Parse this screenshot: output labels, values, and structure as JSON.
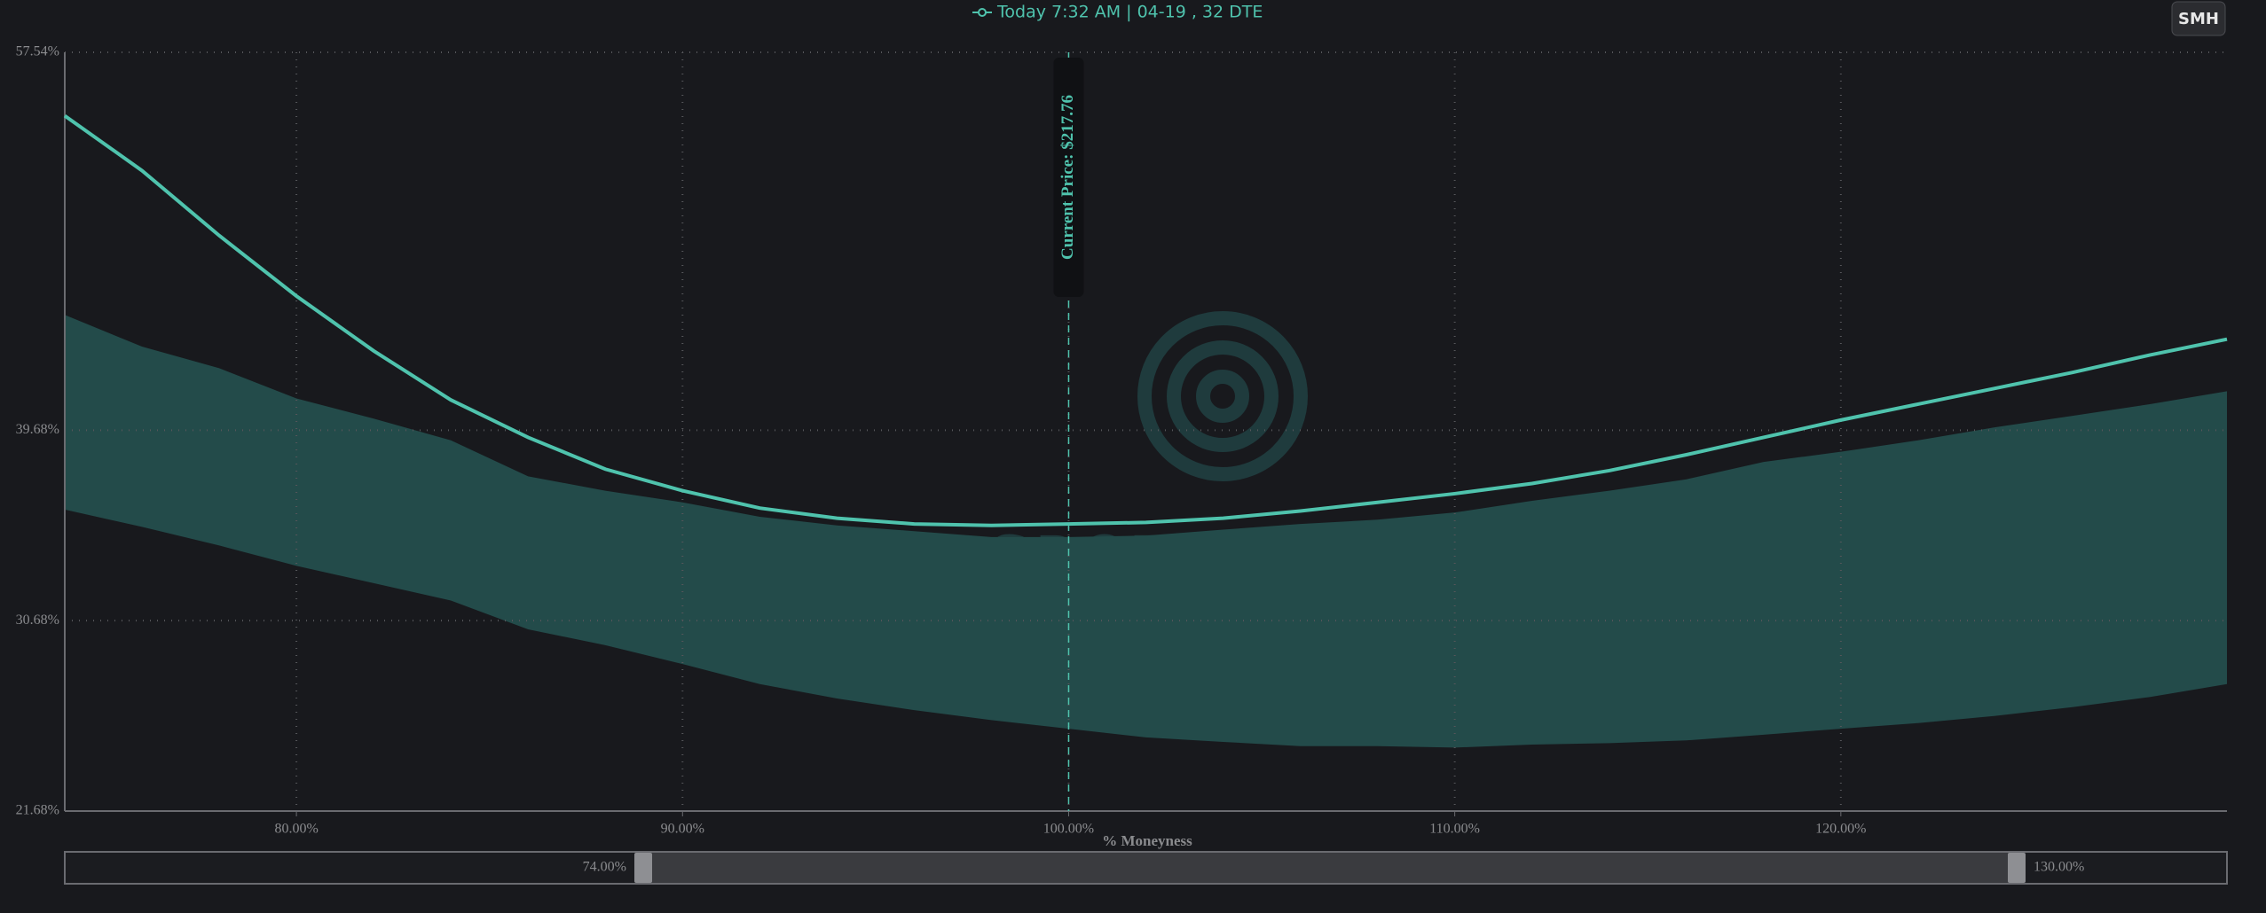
{
  "chart_data": {
    "type": "line",
    "x_label": "% Moneyness",
    "x": [
      74,
      76,
      78,
      80,
      82,
      84,
      86,
      88,
      90,
      92,
      94,
      96,
      98,
      100,
      102,
      104,
      106,
      108,
      110,
      112,
      114,
      116,
      118,
      120,
      122,
      124,
      126,
      128,
      130
    ],
    "series": [
      {
        "name": "Today 7:32 AM | 04-19 , 32 DTE",
        "color": "#4fc3ad",
        "values": [
          54.54,
          51.95,
          48.88,
          46.02,
          43.43,
          41.11,
          39.34,
          37.84,
          36.82,
          36.0,
          35.52,
          35.25,
          35.18,
          35.25,
          35.32,
          35.52,
          35.86,
          36.27,
          36.68,
          37.16,
          37.77,
          38.52,
          39.34,
          40.16,
          40.91,
          41.66,
          42.41,
          43.23,
          43.98
        ]
      }
    ],
    "band": {
      "color": "#234b4a",
      "upper": [
        45.13,
        43.63,
        42.61,
        41.18,
        40.23,
        39.2,
        37.5,
        36.82,
        36.27,
        35.59,
        35.18,
        34.91,
        34.63,
        34.63,
        34.7,
        34.98,
        35.25,
        35.45,
        35.79,
        36.34,
        36.82,
        37.36,
        38.18,
        38.66,
        39.2,
        39.82,
        40.36,
        40.91,
        41.52
      ],
      "lower": [
        35.93,
        35.11,
        34.23,
        33.27,
        32.45,
        31.63,
        30.27,
        29.52,
        28.63,
        27.68,
        27.0,
        26.45,
        25.98,
        25.57,
        25.16,
        24.95,
        24.75,
        24.75,
        24.68,
        24.82,
        24.89,
        25.02,
        25.29,
        25.57,
        25.84,
        26.18,
        26.59,
        27.07,
        27.68
      ]
    },
    "xlim": [
      74,
      130
    ],
    "xticks": [
      {
        "value": 80,
        "label": "80.00%"
      },
      {
        "value": 90,
        "label": "90.00%"
      },
      {
        "value": 100,
        "label": "100.00%"
      },
      {
        "value": 110,
        "label": "110.00%"
      },
      {
        "value": 120,
        "label": "120.00%"
      }
    ],
    "ylim": [
      21.68,
      57.54
    ],
    "yticks": [
      {
        "value": 21.68,
        "label": "21.68%"
      },
      {
        "value": 30.68,
        "label": "30.68%"
      },
      {
        "value": 39.68,
        "label": "39.68%"
      },
      {
        "value": 57.54,
        "label": "57.54%"
      }
    ],
    "grid": true,
    "annotation": {
      "x": 100,
      "label": "Current Price: $217.76"
    },
    "watermark": "SPOTGAMMA"
  },
  "ticker_button": "SMH",
  "range_slider": {
    "min_label": "74.00%",
    "max_label": "130.00%"
  }
}
